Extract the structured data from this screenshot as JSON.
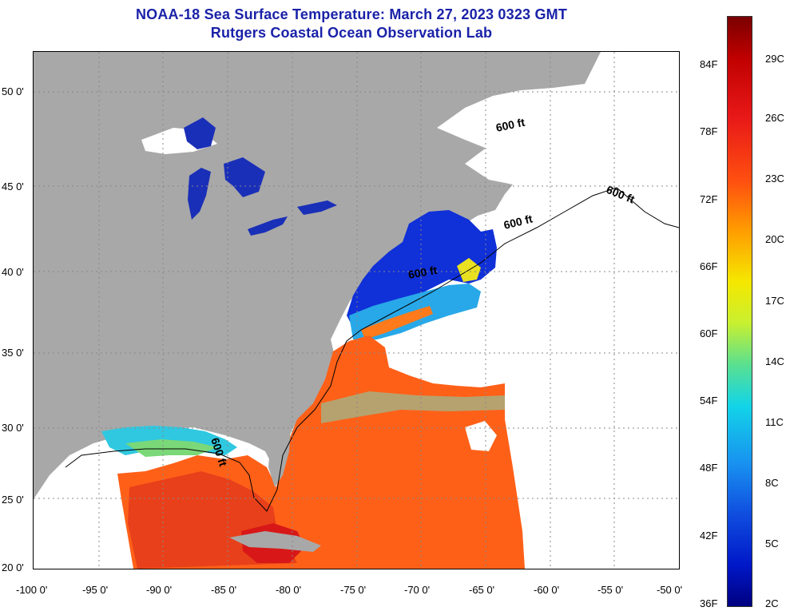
{
  "title": {
    "line1": "NOAA-18 Sea Surface Temperature:  March 27, 2023 0323 GMT",
    "line2": "Rutgers Coastal Ocean Observation Lab"
  },
  "map": {
    "lat_labels": [
      "50 0'",
      "45 0'",
      "40 0'",
      "35 0'",
      "30 0'",
      "25 0'",
      "20 0'"
    ],
    "lon_labels": [
      "-100 0'",
      "-95 0'",
      "-90 0'",
      "-85 0'",
      "-80 0'",
      "-75 0'",
      "-70 0'",
      "-65 0'",
      "-60 0'",
      "-55 0'",
      "-50 0'"
    ],
    "isobath_label": "600 ft",
    "colors": {
      "land": "#a8a8a8",
      "no_data": "#ffffff",
      "warm": "#ff5a1a",
      "cold": "#1030d8",
      "grid": "#888888"
    }
  },
  "colorbar": {
    "fahrenheit": [
      "84F",
      "78F",
      "72F",
      "66F",
      "60F",
      "54F",
      "48F",
      "42F",
      "36F"
    ],
    "celsius": [
      "29C",
      "26C",
      "23C",
      "20C",
      "17C",
      "14C",
      "11C",
      "8C",
      "5C",
      "2C"
    ]
  }
}
